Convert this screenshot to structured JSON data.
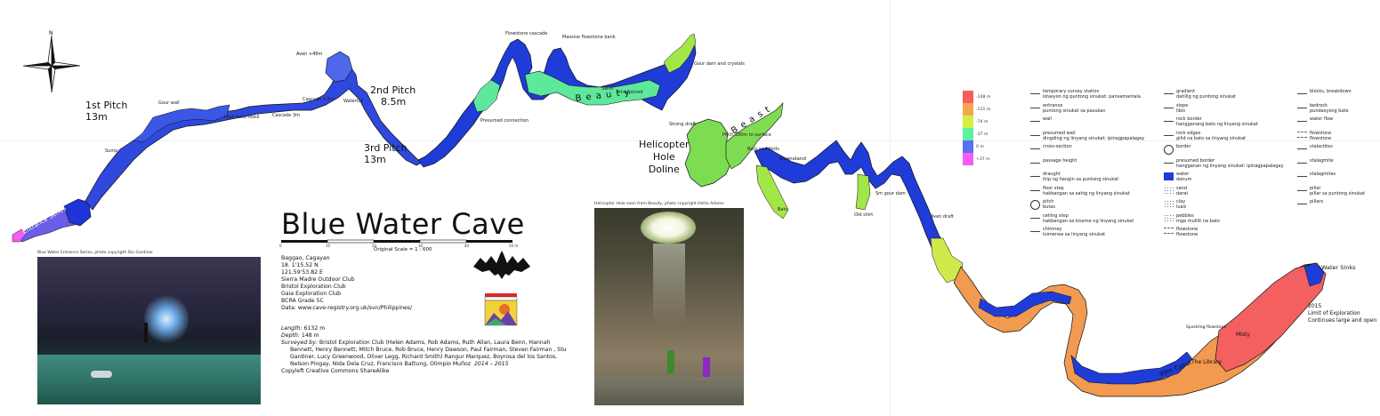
{
  "title": "Blue Water Cave",
  "scale": {
    "label": "Original Scale = 1 : 600",
    "ticks": [
      "0",
      "10",
      "20",
      "30",
      "40",
      "50 m"
    ]
  },
  "location": {
    "lines": [
      "Baggao, Cagayan",
      "18. 1'15.52 N",
      "121.59'53.82 E",
      "Sierra Madre Outdoor Club",
      "Bristol Exploration Club",
      "Gaia Exploration Club",
      "BCRA Grade 5C",
      "Data: www.cave-registry.org.uk/svn/Philippines/"
    ]
  },
  "stats": {
    "length_label": "Length:",
    "length": "6132 m",
    "depth_label": "Depth:",
    "depth": "148 m",
    "surveyed_label": "Surveyed by:",
    "surveyed_text": "Bristol Exploration Club (Helen Adams, Rob Adams, Ruth Allan, Laura Benn, Hannah Bennett, Henry Bennett, Mitch Bruce, Rob Bruce, Henry Dawson, Paul Fairman, Steven Fairman , Stu Gardiner, Lucy Greenwood, Oliver Legg, Richard Smith) Rangur Marquez, Boyrosa del los Santos, Nelson Pingay, Nida Dela Cruz, Francisco Battung, Olimpio Muñoz",
    "years": "2014 – 2015",
    "copyleft": "Copyleft Creative Commons ShareAlike"
  },
  "north": "N",
  "photos": {
    "left_caption": "Blue Water Entrance Series, photo copyright Stu Gardiner",
    "right_caption": "Helicopter Hole seen from Beauty, photo copyright Hellie Adams"
  },
  "features": {
    "pitch1": [
      "1st Pitch",
      "13m"
    ],
    "pitch2": [
      "2nd Pitch",
      "8.5m"
    ],
    "pitch3": [
      "3rd Pitch",
      "13m"
    ],
    "helicopter": [
      "Helicopter",
      "Hole",
      "Doline"
    ],
    "beauty": "B e a u t y",
    "beast": "B e a s t",
    "canal": "99m Canal",
    "water_sinks": "Water Sinks",
    "limit": [
      "2015",
      "Limit of Exploration",
      "Continues large and open"
    ],
    "misty": "Misty",
    "library": "The Library",
    "sparkling": "Sparkling flowstone",
    "guanoland": "Guanoland",
    "aven": "Aven +49m",
    "entrance_series": "Entrance Series"
  },
  "depth_scale": [
    {
      "label": "-148 m",
      "color": "#f65c5c"
    },
    {
      "label": "-111 m",
      "color": "#f4a64e"
    },
    {
      "label": "-74 m",
      "color": "#d4ef40"
    },
    {
      "label": "-37 m",
      "color": "#5ef2a0"
    },
    {
      "label": "0 m",
      "color": "#5a70ee"
    },
    {
      "label": "+37 m",
      "color": "#f45cf4"
    }
  ],
  "legend": {
    "col1": [
      [
        "temporary survey station",
        "istasyon ng puntong sinukat: pansamantala"
      ],
      [
        "entrance",
        "puntong sinukat sa pasukan"
      ],
      [
        "wall",
        ""
      ],
      [
        "presumed wall",
        "dingding ng linyang sinukat: ipinagpapalagay"
      ],
      [
        "cross-section",
        ""
      ],
      [
        "passage height",
        ""
      ],
      [
        "draught",
        "ihip ng hangin sa puntong sinukat"
      ],
      [
        "floor step",
        "hakbangan sa sahig ng linyang sinukat"
      ],
      [
        "pitch",
        "butas"
      ],
      [
        "ceiling step",
        "hakbangan sa kisame ng linyang sinukat"
      ],
      [
        "chimney",
        "tsimenea sa linyang sinukat"
      ]
    ],
    "col2": [
      [
        "gradient",
        "dahilig ng puntong sinukat"
      ],
      [
        "slope",
        "libis"
      ],
      [
        "rock border",
        "hangganang bato ng linyang sinukat"
      ],
      [
        "rock edges",
        "gilid na bato sa linyang sinukat"
      ],
      [
        "border",
        ""
      ],
      [
        "presumed border",
        "hangganan ng linyang sinukat: ipinagpapalagay"
      ],
      [
        "water",
        "danum"
      ],
      [
        "sand",
        "darat"
      ],
      [
        "clay",
        "luad"
      ],
      [
        "pebbles",
        "mga mulilit na bato"
      ],
      [
        "flowstone",
        "flowstone"
      ]
    ],
    "col3": [
      [
        "blocks, breakdown",
        ""
      ],
      [
        "bedrock",
        "pundasyong bato"
      ],
      [
        "water flow",
        ""
      ],
      [
        "flowstone",
        "flowstone"
      ],
      [
        "stalactites",
        ""
      ],
      [
        "stalagmite",
        ""
      ],
      [
        "stalagmites",
        ""
      ],
      [
        "pillar",
        "pillar sa puntong sinukat"
      ],
      [
        "pillars",
        ""
      ]
    ]
  },
  "small_labels": [
    "Gour wall",
    "Sump",
    "High level fossil",
    "Cascade 3m",
    "Cascade 4.5m",
    "Waterfall",
    "Flowstone cascade",
    "Massive flowstone bank",
    "Swim",
    "Unexplored",
    "Strong draft",
    "Pitch 180m to surface",
    "Bats and birds",
    "Gour dam and crystals",
    "Bats",
    "Old shirt",
    "Aven draft",
    "Presumed connection",
    "Sm gour dam"
  ]
}
